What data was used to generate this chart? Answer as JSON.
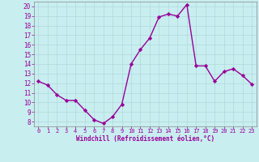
{
  "x": [
    0,
    1,
    2,
    3,
    4,
    5,
    6,
    7,
    8,
    9,
    10,
    11,
    12,
    13,
    14,
    15,
    16,
    17,
    18,
    19,
    20,
    21,
    22,
    23
  ],
  "y": [
    12.2,
    11.8,
    10.8,
    10.2,
    10.2,
    9.2,
    8.2,
    7.8,
    8.5,
    9.8,
    14.0,
    15.5,
    16.7,
    18.9,
    19.2,
    19.0,
    20.2,
    13.8,
    13.8,
    12.2,
    13.2,
    13.5,
    12.8,
    11.9
  ],
  "line_color": "#990099",
  "marker": "D",
  "marker_size": 2.2,
  "bg_color": "#c8eef0",
  "grid_color": "#b0d8da",
  "xlabel": "Windchill (Refroidissement éolien,°C)",
  "xlabel_color": "#990099",
  "tick_color": "#990099",
  "xlim": [
    -0.5,
    23.5
  ],
  "ylim": [
    7.5,
    20.5
  ],
  "yticks": [
    8,
    9,
    10,
    11,
    12,
    13,
    14,
    15,
    16,
    17,
    18,
    19,
    20
  ],
  "xticks": [
    0,
    1,
    2,
    3,
    4,
    5,
    6,
    7,
    8,
    9,
    10,
    11,
    12,
    13,
    14,
    15,
    16,
    17,
    18,
    19,
    20,
    21,
    22,
    23
  ],
  "linewidth": 1.0
}
